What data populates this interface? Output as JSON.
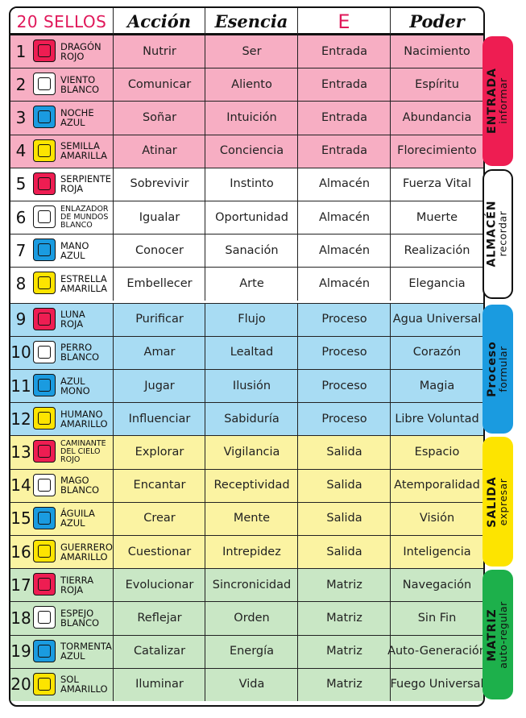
{
  "header": {
    "sellos": "20 SELLOS",
    "accion": "Acción",
    "esencia": "Esencia",
    "e": "E",
    "poder": "Poder"
  },
  "colors": {
    "pink": "#f7aec3",
    "white": "#ffffff",
    "blue": "#a8dcf3",
    "yellow": "#fbf3a2",
    "green": "#c9e7c5",
    "red_side": "#ee1d52",
    "blue_side": "#1a9be0",
    "yellow_side": "#fde400",
    "green_side": "#1db04b",
    "accent_text": "#e0185a"
  },
  "rows": [
    {
      "num": "1",
      "name": [
        "DRAGÓN",
        "ROJO"
      ],
      "glyph": "red",
      "accion": "Nutrir",
      "esencia": "Ser",
      "e": "Entrada",
      "poder": "Nacimiento",
      "group": "pink"
    },
    {
      "num": "2",
      "name": [
        "VIENTO",
        "BLANCO"
      ],
      "glyph": "white",
      "accion": "Comunicar",
      "esencia": "Aliento",
      "e": "Entrada",
      "poder": "Espíritu",
      "group": "pink"
    },
    {
      "num": "3",
      "name": [
        "NOCHE",
        "AZUL"
      ],
      "glyph": "blue",
      "accion": "Soñar",
      "esencia": "Intuición",
      "e": "Entrada",
      "poder": "Abundancia",
      "group": "pink"
    },
    {
      "num": "4",
      "name": [
        "SEMILLA",
        "AMARILLA"
      ],
      "glyph": "yellow",
      "accion": "Atinar",
      "esencia": "Conciencia",
      "e": "Entrada",
      "poder": "Florecimiento",
      "group": "pink"
    },
    {
      "num": "5",
      "name": [
        "SERPIENTE",
        "ROJA"
      ],
      "glyph": "red",
      "accion": "Sobrevivir",
      "esencia": "Instinto",
      "e": "Almacén",
      "poder": "Fuerza Vital",
      "group": "white"
    },
    {
      "num": "6",
      "name": [
        "ENLAZADOR",
        "DE MUNDOS",
        "BLANCO"
      ],
      "glyph": "white",
      "accion": "Igualar",
      "esencia": "Oportunidad",
      "e": "Almacén",
      "poder": "Muerte",
      "group": "white"
    },
    {
      "num": "7",
      "name": [
        "MANO",
        "AZUL"
      ],
      "glyph": "blue",
      "accion": "Conocer",
      "esencia": "Sanación",
      "e": "Almacén",
      "poder": "Realización",
      "group": "white"
    },
    {
      "num": "8",
      "name": [
        "ESTRELLA",
        "AMARILLA"
      ],
      "glyph": "yellow",
      "accion": "Embellecer",
      "esencia": "Arte",
      "e": "Almacén",
      "poder": "Elegancia",
      "group": "white"
    },
    {
      "num": "9",
      "name": [
        "LUNA",
        "ROJA"
      ],
      "glyph": "red",
      "accion": "Purificar",
      "esencia": "Flujo",
      "e": "Proceso",
      "poder": "Agua Universal",
      "group": "blue"
    },
    {
      "num": "10",
      "name": [
        "PERRO",
        "BLANCO"
      ],
      "glyph": "white",
      "accion": "Amar",
      "esencia": "Lealtad",
      "e": "Proceso",
      "poder": "Corazón",
      "group": "blue"
    },
    {
      "num": "11",
      "name": [
        "AZUL",
        "MONO"
      ],
      "glyph": "blue",
      "accion": "Jugar",
      "esencia": "Ilusión",
      "e": "Proceso",
      "poder": "Magia",
      "group": "blue"
    },
    {
      "num": "12",
      "name": [
        "HUMANO",
        "AMARILLO"
      ],
      "glyph": "yellow",
      "accion": "Influenciar",
      "esencia": "Sabiduría",
      "e": "Proceso",
      "poder": "Libre Voluntad",
      "group": "blue"
    },
    {
      "num": "13",
      "name": [
        "CAMINANTE",
        "DEL CIELO",
        "ROJO"
      ],
      "glyph": "red",
      "accion": "Explorar",
      "esencia": "Vigilancia",
      "e": "Salida",
      "poder": "Espacio",
      "group": "yellow"
    },
    {
      "num": "14",
      "name": [
        "MAGO",
        "BLANCO"
      ],
      "glyph": "white",
      "accion": "Encantar",
      "esencia": "Receptividad",
      "e": "Salida",
      "poder": "Atemporalidad",
      "group": "yellow"
    },
    {
      "num": "15",
      "name": [
        "ÁGUILA",
        "AZUL"
      ],
      "glyph": "blue",
      "accion": "Crear",
      "esencia": "Mente",
      "e": "Salida",
      "poder": "Visión",
      "group": "yellow"
    },
    {
      "num": "16",
      "name": [
        "GUERRERO",
        "AMARILLO"
      ],
      "glyph": "yellow",
      "accion": "Cuestionar",
      "esencia": "Intrepidez",
      "e": "Salida",
      "poder": "Inteligencia",
      "group": "yellow"
    },
    {
      "num": "17",
      "name": [
        "TIERRA",
        "ROJA"
      ],
      "glyph": "red",
      "accion": "Evolucionar",
      "esencia": "Sincronicidad",
      "e": "Matriz",
      "poder": "Navegación",
      "group": "green"
    },
    {
      "num": "18",
      "name": [
        "ESPEJO",
        "BLANCO"
      ],
      "glyph": "white",
      "accion": "Reflejar",
      "esencia": "Orden",
      "e": "Matriz",
      "poder": "Sin Fin",
      "group": "green"
    },
    {
      "num": "19",
      "name": [
        "TORMENTA",
        "AZUL"
      ],
      "glyph": "blue",
      "accion": "Catalizar",
      "esencia": "Energía",
      "e": "Matriz",
      "poder": "Auto-Generación",
      "group": "green"
    },
    {
      "num": "20",
      "name": [
        "SOL",
        "AMARILLO"
      ],
      "glyph": "yellow",
      "accion": "Iluminar",
      "esencia": "Vida",
      "e": "Matriz",
      "poder": "Fuego Universal",
      "group": "green"
    }
  ],
  "sidebars": [
    {
      "title": "ENTRADA",
      "subtitle": "informar",
      "color": "red_side",
      "text_color": "#111111"
    },
    {
      "title": "ALMACÉN",
      "subtitle": "recordar",
      "color": "white",
      "text_color": "#111111"
    },
    {
      "title": "Proceso",
      "subtitle": "formular",
      "color": "blue_side",
      "text_color": "#111111"
    },
    {
      "title": "SALIDA",
      "subtitle": "expresar",
      "color": "yellow_side",
      "text_color": "#111111"
    },
    {
      "title": "MATRIZ",
      "subtitle": "auto-regular",
      "color": "green_side",
      "text_color": "#111111"
    }
  ]
}
